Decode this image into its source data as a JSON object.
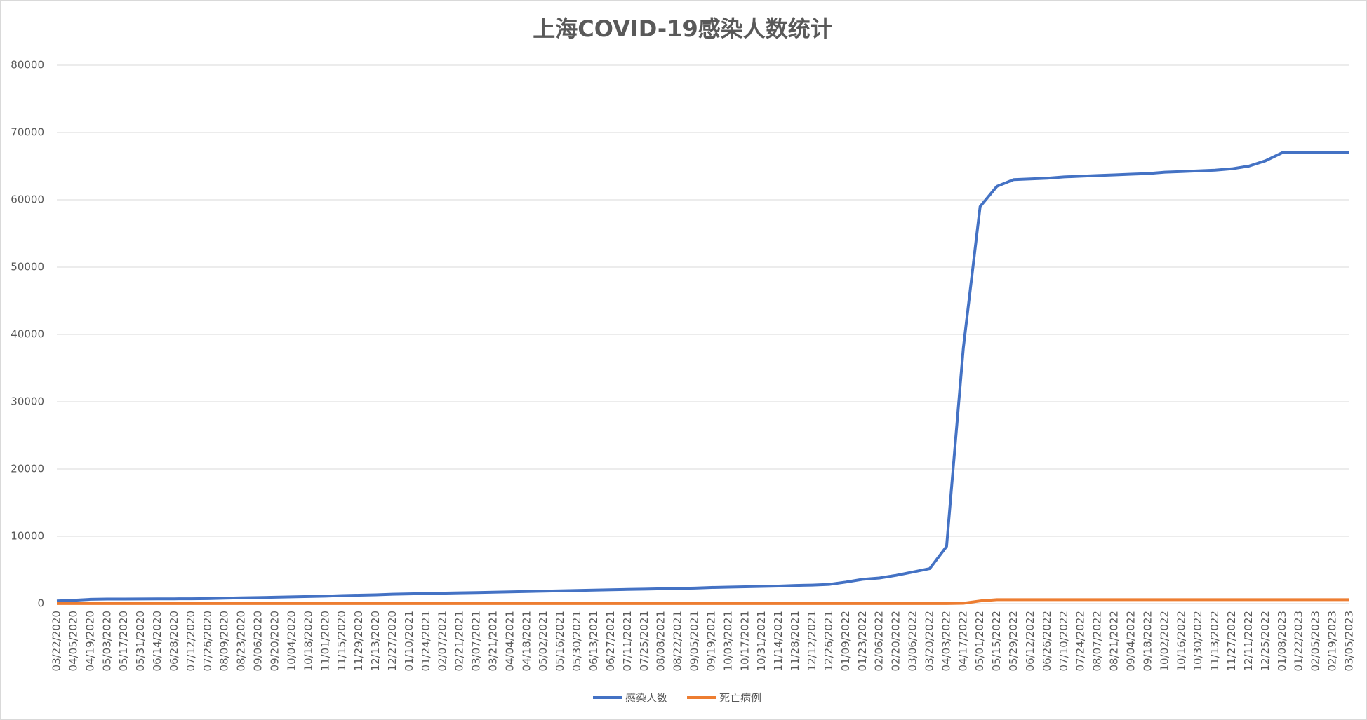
{
  "chart_data": {
    "type": "line",
    "title": "上海COVID-19感染人数统计",
    "categories": [
      "03/22/2020",
      "04/05/2020",
      "04/19/2020",
      "05/03/2020",
      "05/17/2020",
      "05/31/2020",
      "06/14/2020",
      "06/28/2020",
      "07/12/2020",
      "07/26/2020",
      "08/09/2020",
      "08/23/2020",
      "09/06/2020",
      "09/20/2020",
      "10/04/2020",
      "10/18/2020",
      "11/01/2020",
      "11/15/2020",
      "11/29/2020",
      "12/13/2020",
      "12/27/2020",
      "01/10/2021",
      "01/24/2021",
      "02/07/2021",
      "02/21/2021",
      "03/07/2021",
      "03/21/2021",
      "04/04/2021",
      "04/18/2021",
      "05/02/2021",
      "05/16/2021",
      "05/30/2021",
      "06/13/2021",
      "06/27/2021",
      "07/11/2021",
      "07/25/2021",
      "08/08/2021",
      "08/22/2021",
      "09/05/2021",
      "09/19/2021",
      "10/03/2021",
      "10/17/2021",
      "10/31/2021",
      "11/14/2021",
      "11/28/2021",
      "12/12/2021",
      "12/26/2021",
      "01/09/2022",
      "01/23/2022",
      "02/06/2022",
      "02/20/2022",
      "03/06/2022",
      "03/20/2022",
      "04/03/2022",
      "04/17/2022",
      "05/01/2022",
      "05/15/2022",
      "05/29/2022",
      "06/12/2022",
      "06/26/2022",
      "07/10/2022",
      "07/24/2022",
      "08/07/2022",
      "08/21/2022",
      "09/04/2022",
      "09/18/2022",
      "10/02/2022",
      "10/16/2022",
      "10/30/2022",
      "11/13/2022",
      "11/27/2022",
      "12/11/2022",
      "12/25/2022",
      "01/08/2023",
      "01/22/2023",
      "02/05/2023",
      "02/19/2023",
      "03/05/2023"
    ],
    "series": [
      {
        "name": "感染人数",
        "color": "#4472c4",
        "values": [
          400,
          500,
          640,
          680,
          680,
          690,
          700,
          710,
          720,
          740,
          800,
          850,
          900,
          950,
          1000,
          1050,
          1100,
          1200,
          1250,
          1300,
          1400,
          1450,
          1500,
          1550,
          1600,
          1650,
          1700,
          1750,
          1800,
          1850,
          1900,
          1950,
          2000,
          2050,
          2100,
          2150,
          2200,
          2250,
          2300,
          2400,
          2450,
          2500,
          2550,
          2600,
          2700,
          2750,
          2850,
          3200,
          3600,
          3800,
          4200,
          4700,
          5200,
          8500,
          38000,
          59000,
          62000,
          63000,
          63100,
          63200,
          63400,
          63500,
          63600,
          63700,
          63800,
          63900,
          64100,
          64200,
          64300,
          64400,
          64600,
          65000,
          65800,
          67000,
          67000,
          67000,
          67000,
          67000
        ]
      },
      {
        "name": "死亡病例",
        "color": "#ed7d31",
        "values": [
          7,
          7,
          7,
          7,
          7,
          7,
          7,
          7,
          7,
          7,
          7,
          7,
          7,
          7,
          7,
          7,
          7,
          7,
          7,
          7,
          7,
          7,
          7,
          7,
          7,
          7,
          7,
          7,
          7,
          7,
          7,
          7,
          7,
          7,
          7,
          7,
          7,
          7,
          7,
          7,
          7,
          7,
          7,
          7,
          7,
          7,
          7,
          7,
          7,
          7,
          7,
          7,
          7,
          7,
          50,
          400,
          588,
          588,
          588,
          588,
          588,
          588,
          588,
          588,
          588,
          588,
          588,
          588,
          588,
          588,
          588,
          588,
          588,
          588,
          588,
          588,
          588,
          588
        ]
      }
    ],
    "ylim": [
      0,
      80000
    ],
    "yticks": [
      0,
      10000,
      20000,
      30000,
      40000,
      50000,
      60000,
      70000,
      80000
    ],
    "grid": true,
    "legend": "bottom"
  }
}
